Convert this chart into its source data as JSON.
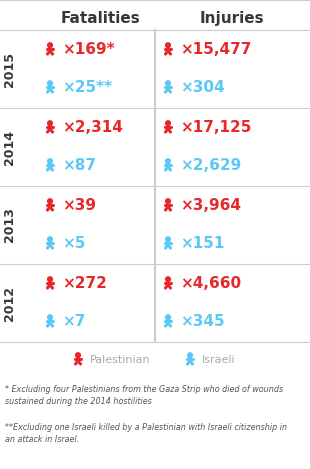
{
  "title_left": "Fatalities",
  "title_right": "Injuries",
  "years": [
    "2015",
    "2014",
    "2013",
    "2012"
  ],
  "fatalities_palestinian": [
    "169*",
    "2,314",
    "39",
    "272"
  ],
  "fatalities_israeli": [
    "25**",
    "87",
    "5",
    "7"
  ],
  "injuries_palestinian": [
    "15,477",
    "17,125",
    "3,964",
    "4,660"
  ],
  "injuries_israeli": [
    "304",
    "2,629",
    "151",
    "345"
  ],
  "red": "#e8272a",
  "blue": "#5bc8f5",
  "year_color": "#3d3533",
  "title_color": "#3d3533",
  "legend_label_color": "#aaaaaa",
  "footnote_color": "#555555",
  "bg_color": "#ffffff",
  "divider_color": "#cccccc",
  "footnote1": "* Excluding four Palestinians from the Gaza Strip who died of wounds\nsustained during the 2014 hostilities",
  "footnote2": "**Excluding one Israeli killed by a Palestinian with Israeli citizenship in\nan attack in Israel."
}
